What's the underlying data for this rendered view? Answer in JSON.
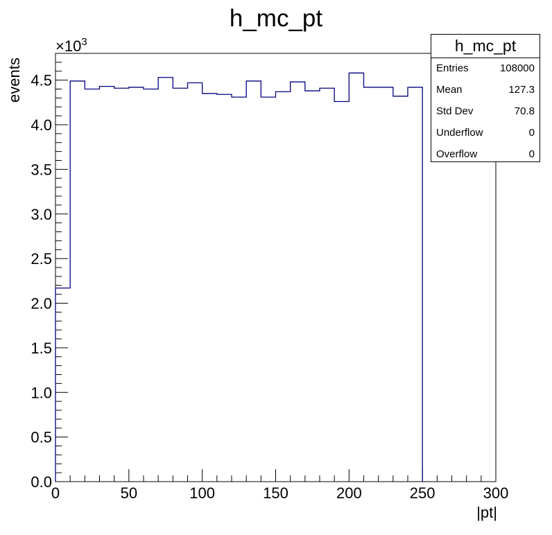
{
  "chart_data": {
    "type": "bar",
    "style": "step-histogram",
    "title": "h_mc_pt",
    "xlabel": "|pt|",
    "ylabel": "events",
    "y_multiplier_label": "×10",
    "y_multiplier_exponent": "3",
    "xlim": [
      0,
      300
    ],
    "ylim": [
      0,
      4.8
    ],
    "bin_width": 10,
    "bin_edges": [
      0,
      10,
      20,
      30,
      40,
      50,
      60,
      70,
      80,
      90,
      100,
      110,
      120,
      130,
      140,
      150,
      160,
      170,
      180,
      190,
      200,
      210,
      220,
      230,
      240,
      250
    ],
    "values": [
      2.17,
      4.49,
      4.4,
      4.43,
      4.41,
      4.42,
      4.4,
      4.53,
      4.41,
      4.47,
      4.35,
      4.34,
      4.31,
      4.49,
      4.31,
      4.37,
      4.48,
      4.38,
      4.41,
      4.26,
      4.58,
      4.42,
      4.42,
      4.32,
      4.42
    ],
    "x_ticks": [
      "0",
      "50",
      "100",
      "150",
      "200",
      "250",
      "300"
    ],
    "y_ticks": [
      "0.0",
      "0.5",
      "1.0",
      "1.5",
      "2.0",
      "2.5",
      "3.0",
      "3.5",
      "4.0",
      "4.5"
    ],
    "line_color": "#000080",
    "grid": false,
    "legend": "none"
  },
  "stats": {
    "title": "h_mc_pt",
    "rows": [
      {
        "label": "Entries",
        "value": "108000"
      },
      {
        "label": "Mean",
        "value": "127.3"
      },
      {
        "label": "Std Dev",
        "value": "70.8"
      },
      {
        "label": "Underflow",
        "value": "0"
      },
      {
        "label": "Overflow",
        "value": "0"
      }
    ]
  }
}
